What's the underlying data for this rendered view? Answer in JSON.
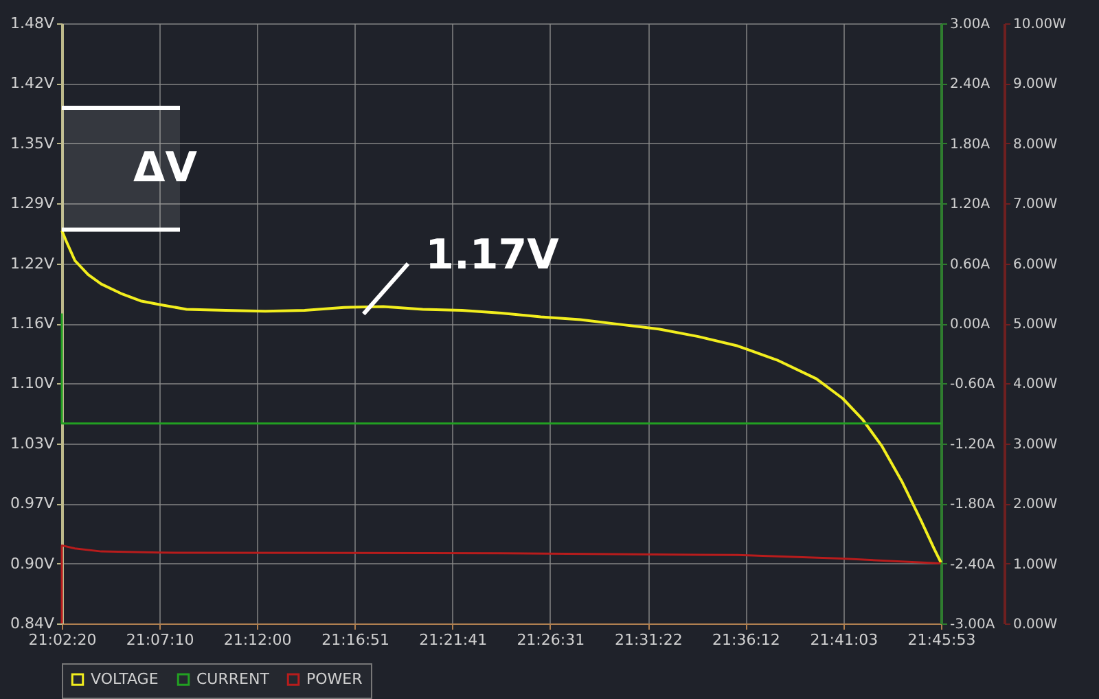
{
  "chart_data": {
    "type": "line",
    "xlim": [
      21.038889,
      21.764722
    ],
    "xticks": [
      {
        "value": 21.038889,
        "label": "21:02:20"
      },
      {
        "value": 21.119444,
        "label": "21:07:10"
      },
      {
        "value": 21.2,
        "label": "21:12:00"
      },
      {
        "value": 21.280833,
        "label": "21:16:51"
      },
      {
        "value": 21.361389,
        "label": "21:21:41"
      },
      {
        "value": 21.441944,
        "label": "21:26:31"
      },
      {
        "value": 21.522778,
        "label": "21:31:22"
      },
      {
        "value": 21.603333,
        "label": "21:36:12"
      },
      {
        "value": 21.684167,
        "label": "21:41:03"
      },
      {
        "value": 21.764722,
        "label": "21:45:53"
      }
    ],
    "ylim": [
      0.84,
      1.48
    ],
    "yticks": [
      {
        "value": 0.84,
        "label": "0.84V"
      },
      {
        "value": 0.904,
        "label": "0.90V"
      },
      {
        "value": 0.968,
        "label": "0.97V"
      },
      {
        "value": 1.032,
        "label": "1.03V"
      },
      {
        "value": 1.096,
        "label": "1.10V"
      },
      {
        "value": 1.16,
        "label": "1.16V"
      },
      {
        "value": 1.224,
        "label": "1.22V"
      },
      {
        "value": 1.288,
        "label": "1.29V"
      },
      {
        "value": 1.352,
        "label": "1.35V"
      },
      {
        "value": 1.416,
        "label": "1.42V"
      },
      {
        "value": 1.48,
        "label": "1.48V"
      }
    ],
    "y2lim": [
      -3,
      3
    ],
    "y2ticks": [
      {
        "value": -3,
        "label": "-3.00A"
      },
      {
        "value": -2.4,
        "label": "-2.40A"
      },
      {
        "value": -1.8,
        "label": "-1.80A"
      },
      {
        "value": -1.2,
        "label": "-1.20A"
      },
      {
        "value": -0.6,
        "label": "-0.60A"
      },
      {
        "value": 0,
        "label": "0.00A"
      },
      {
        "value": 0.6,
        "label": "0.60A"
      },
      {
        "value": 1.2,
        "label": "1.20A"
      },
      {
        "value": 1.8,
        "label": "1.80A"
      },
      {
        "value": 2.4,
        "label": "2.40A"
      },
      {
        "value": 3,
        "label": "3.00A"
      }
    ],
    "y3lim": [
      0,
      10
    ],
    "y3ticks": [
      {
        "value": 0,
        "label": "0.00W"
      },
      {
        "value": 1,
        "label": "1.00W"
      },
      {
        "value": 2,
        "label": "2.00W"
      },
      {
        "value": 3,
        "label": "3.00W"
      },
      {
        "value": 4,
        "label": "4.00W"
      },
      {
        "value": 5,
        "label": "5.00W"
      },
      {
        "value": 6,
        "label": "6.00W"
      },
      {
        "value": 7,
        "label": "7.00W"
      },
      {
        "value": 8,
        "label": "8.00W"
      },
      {
        "value": 9,
        "label": "9.00W"
      },
      {
        "value": 10,
        "label": "10.00W"
      }
    ],
    "series": [
      {
        "name": "VOLTAGE",
        "color": "#f2ee1e",
        "x": [
          21.0389,
          21.0421,
          21.0497,
          21.0606,
          21.0714,
          21.0876,
          21.1039,
          21.1201,
          21.1418,
          21.1743,
          21.2068,
          21.2393,
          21.2718,
          21.3043,
          21.3368,
          21.3693,
          21.4018,
          21.4343,
          21.4668,
          21.4993,
          21.5318,
          21.5643,
          21.5968,
          21.6293,
          21.6618,
          21.6835,
          21.6997,
          21.716,
          21.7322,
          21.7485,
          21.7593,
          21.7647
        ],
        "values": [
          1.259,
          1.249,
          1.227,
          1.212,
          1.202,
          1.192,
          1.184,
          1.18,
          1.175,
          1.174,
          1.173,
          1.174,
          1.177,
          1.178,
          1.175,
          1.174,
          1.171,
          1.167,
          1.164,
          1.159,
          1.154,
          1.146,
          1.136,
          1.121,
          1.101,
          1.08,
          1.058,
          1.029,
          0.992,
          0.949,
          0.919,
          0.905
        ]
      },
      {
        "name": "CURRENT",
        "color": "#22a022",
        "axis": "y2",
        "x": [
          21.0389,
          21.0389,
          21.7647
        ],
        "values": [
          0.1,
          -1.0,
          -1.0
        ]
      },
      {
        "name": "POWER",
        "color": "#b81c1c",
        "axis": "y3",
        "x": [
          21.0389,
          21.0389,
          21.0497,
          21.0714,
          21.1201,
          21.4018,
          21.5968,
          21.6835,
          21.7647
        ],
        "values": [
          0,
          1.3,
          1.25,
          1.2,
          1.18,
          1.17,
          1.14,
          1.08,
          1.0
        ]
      }
    ],
    "bands": [
      {
        "axis": "y",
        "from": 1.26,
        "to": 1.39,
        "label": "ΔV",
        "color": "#ffffff"
      }
    ],
    "annotations": [
      {
        "text": "1.17V",
        "x": 21.288,
        "y": 1.17
      }
    ],
    "grid": true,
    "legend": "bottom"
  }
}
